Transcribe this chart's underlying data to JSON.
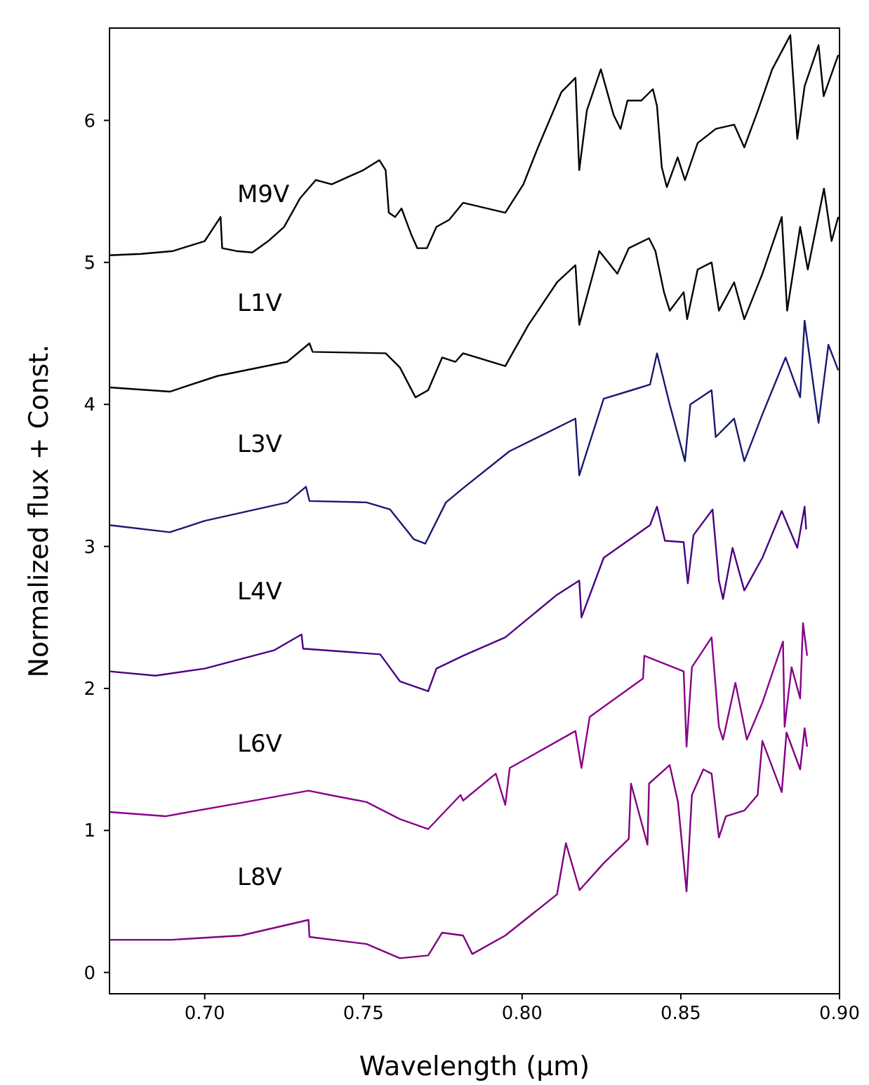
{
  "chart_data": {
    "type": "line",
    "xlabel": "Wavelength (μm)",
    "ylabel": "Normalized flux + Const.",
    "xlim": [
      0.67,
      0.9
    ],
    "ylim": [
      -0.15,
      6.65
    ],
    "xticks": [
      {
        "value": 0.7,
        "label": "0.70"
      },
      {
        "value": 0.75,
        "label": "0.75"
      },
      {
        "value": 0.8,
        "label": "0.80"
      },
      {
        "value": 0.85,
        "label": "0.85"
      },
      {
        "value": 0.9,
        "label": "0.90"
      }
    ],
    "yticks": [
      0,
      1,
      2,
      3,
      4,
      5,
      6
    ],
    "grid": false,
    "marker": "none",
    "line_style": "solid",
    "series": [
      {
        "name": "M9V",
        "color": "#000000",
        "x": [
          0.67,
          0.68,
          0.69,
          0.7,
          0.705,
          0.7055,
          0.71,
          0.715,
          0.72,
          0.725,
          0.73,
          0.735,
          0.74,
          0.745,
          0.75,
          0.755,
          0.757,
          0.758,
          0.76,
          0.762,
          0.765,
          0.767,
          0.77,
          0.773,
          0.777,
          0.7814,
          0.7947,
          0.8004,
          0.805,
          0.8124,
          0.8168,
          0.818,
          0.8204,
          0.8248,
          0.8288,
          0.831,
          0.8332,
          0.8376,
          0.8412,
          0.8425,
          0.844,
          0.8456,
          0.849,
          0.8513,
          0.8553,
          0.861,
          0.8668,
          0.87,
          0.8743,
          0.8788,
          0.8845,
          0.8867,
          0.889,
          0.8934,
          0.895,
          0.8996
        ],
        "values": [
          5.05,
          5.06,
          5.08,
          5.15,
          5.32,
          5.1,
          5.08,
          5.07,
          5.15,
          5.25,
          5.45,
          5.58,
          5.55,
          5.6,
          5.65,
          5.72,
          5.65,
          5.35,
          5.32,
          5.38,
          5.2,
          5.1,
          5.1,
          5.25,
          5.3,
          5.42,
          5.35,
          5.55,
          5.81,
          6.2,
          6.3,
          5.65,
          6.07,
          6.36,
          6.04,
          5.94,
          6.14,
          6.14,
          6.22,
          6.1,
          5.67,
          5.53,
          5.74,
          5.58,
          5.84,
          5.94,
          5.97,
          5.81,
          6.07,
          6.36,
          6.6,
          5.87,
          6.24,
          6.53,
          6.17,
          6.46
        ]
      },
      {
        "name": "L1V",
        "color": "#000000",
        "x": [
          0.67,
          0.689,
          0.704,
          0.726,
          0.733,
          0.734,
          0.757,
          0.7615,
          0.7664,
          0.7704,
          0.7748,
          0.779,
          0.7814,
          0.7947,
          0.802,
          0.811,
          0.8168,
          0.818,
          0.8243,
          0.83,
          0.8336,
          0.84,
          0.842,
          0.8447,
          0.8465,
          0.8509,
          0.852,
          0.8553,
          0.8597,
          0.862,
          0.8668,
          0.87,
          0.8757,
          0.8818,
          0.8835,
          0.8876,
          0.89,
          0.8951,
          0.8975,
          0.8996
        ],
        "values": [
          4.12,
          4.09,
          4.2,
          4.3,
          4.43,
          4.37,
          4.36,
          4.26,
          4.05,
          4.1,
          4.33,
          4.3,
          4.36,
          4.27,
          4.56,
          4.86,
          4.98,
          4.56,
          5.08,
          4.92,
          5.1,
          5.17,
          5.08,
          4.79,
          4.66,
          4.79,
          4.6,
          4.95,
          5.0,
          4.66,
          4.86,
          4.6,
          4.92,
          5.32,
          4.66,
          5.25,
          4.95,
          5.52,
          5.15,
          5.32
        ]
      },
      {
        "name": "L3V",
        "color": "#191970",
        "x": [
          0.67,
          0.689,
          0.7,
          0.726,
          0.7319,
          0.733,
          0.751,
          0.7584,
          0.7659,
          0.7695,
          0.776,
          0.7814,
          0.796,
          0.8168,
          0.818,
          0.8257,
          0.8345,
          0.8403,
          0.8425,
          0.8465,
          0.8513,
          0.853,
          0.8597,
          0.861,
          0.8668,
          0.87,
          0.8757,
          0.883,
          0.8876,
          0.889,
          0.8934,
          0.8965,
          0.8996
        ],
        "values": [
          3.15,
          3.1,
          3.18,
          3.31,
          3.42,
          3.32,
          3.31,
          3.26,
          3.05,
          3.02,
          3.31,
          3.41,
          3.67,
          3.9,
          3.5,
          4.04,
          4.1,
          4.14,
          4.36,
          4.0,
          3.6,
          4.0,
          4.1,
          3.77,
          3.9,
          3.6,
          3.93,
          4.33,
          4.05,
          4.59,
          3.87,
          4.42,
          4.24
        ]
      },
      {
        "name": "L4V",
        "color": "#4b0082",
        "x": [
          0.67,
          0.6845,
          0.7,
          0.722,
          0.7305,
          0.731,
          0.7553,
          0.7615,
          0.7704,
          0.773,
          0.7814,
          0.7947,
          0.811,
          0.818,
          0.8187,
          0.8257,
          0.8403,
          0.8425,
          0.845,
          0.8509,
          0.8522,
          0.854,
          0.86,
          0.862,
          0.8633,
          0.8663,
          0.87,
          0.8757,
          0.8818,
          0.8867,
          0.889,
          0.8895
        ],
        "values": [
          2.12,
          2.09,
          2.14,
          2.27,
          2.38,
          2.28,
          2.24,
          2.05,
          1.98,
          2.14,
          2.23,
          2.36,
          2.66,
          2.76,
          2.5,
          2.92,
          3.15,
          3.28,
          3.04,
          3.03,
          2.74,
          3.08,
          3.26,
          2.76,
          2.63,
          2.99,
          2.69,
          2.92,
          3.25,
          2.99,
          3.28,
          3.12
        ]
      },
      {
        "name": "L6V",
        "color": "#8b008b",
        "x": [
          0.67,
          0.6876,
          0.7128,
          0.7327,
          0.7394,
          0.751,
          0.7615,
          0.7704,
          0.7806,
          0.7814,
          0.7917,
          0.7947,
          0.7961,
          0.8168,
          0.8187,
          0.8213,
          0.8381,
          0.8385,
          0.8509,
          0.8518,
          0.8535,
          0.8597,
          0.862,
          0.8633,
          0.8672,
          0.8708,
          0.8757,
          0.8822,
          0.8827,
          0.8849,
          0.8876,
          0.8885,
          0.8898
        ],
        "values": [
          1.13,
          1.1,
          1.2,
          1.28,
          1.25,
          1.2,
          1.08,
          1.01,
          1.25,
          1.21,
          1.4,
          1.18,
          1.44,
          1.7,
          1.44,
          1.8,
          2.07,
          2.23,
          2.12,
          1.59,
          2.15,
          2.36,
          1.73,
          1.64,
          2.04,
          1.64,
          1.9,
          2.33,
          1.73,
          2.15,
          1.93,
          2.46,
          2.23
        ]
      },
      {
        "name": "L8V",
        "color": "#800080",
        "x": [
          0.67,
          0.6894,
          0.7115,
          0.7327,
          0.733,
          0.751,
          0.7615,
          0.7704,
          0.7748,
          0.7814,
          0.7843,
          0.7947,
          0.811,
          0.8138,
          0.8181,
          0.8257,
          0.8336,
          0.8343,
          0.8395,
          0.84,
          0.8465,
          0.8491,
          0.8518,
          0.8535,
          0.8571,
          0.8597,
          0.862,
          0.8642,
          0.87,
          0.8742,
          0.8757,
          0.8818,
          0.8833,
          0.8876,
          0.889,
          0.8898
        ],
        "values": [
          0.23,
          0.23,
          0.26,
          0.37,
          0.25,
          0.2,
          0.1,
          0.12,
          0.28,
          0.26,
          0.13,
          0.26,
          0.55,
          0.91,
          0.58,
          0.77,
          0.94,
          1.33,
          0.9,
          1.33,
          1.46,
          1.2,
          0.57,
          1.25,
          1.43,
          1.4,
          0.95,
          1.1,
          1.14,
          1.25,
          1.63,
          1.27,
          1.69,
          1.43,
          1.72,
          1.59
        ]
      }
    ]
  }
}
